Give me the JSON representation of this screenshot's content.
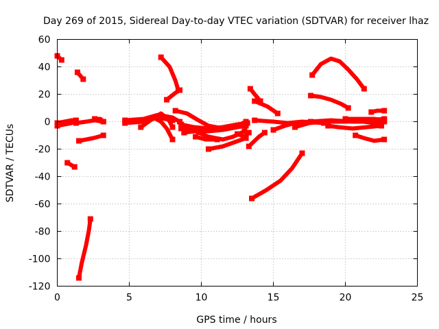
{
  "chart_data": {
    "type": "line",
    "title": "Day 269 of 2015, Sidereal Day-to-day VTEC variation (SDTVAR) for receiver lhaz",
    "xlabel": "GPS time / hours",
    "ylabel": "SDTVAR / TECUs",
    "xlim": [
      0,
      25
    ],
    "ylim": [
      -120,
      60
    ],
    "x_ticks": [
      "0",
      "5",
      "10",
      "15",
      "20",
      "25"
    ],
    "y_ticks": [
      "60",
      "40",
      "20",
      "0",
      "-20",
      "-40",
      "-60",
      "-80",
      "-100",
      "-120"
    ],
    "x_tick_values": [
      0,
      5,
      10,
      15,
      20,
      25
    ],
    "y_tick_values": [
      60,
      40,
      20,
      0,
      -20,
      -40,
      -60,
      -80,
      -100,
      -120
    ],
    "grid": true,
    "color": "#ff0000",
    "series": [
      {
        "name": "s1",
        "points": [
          [
            0.0,
            48
          ],
          [
            0.3,
            45
          ]
        ]
      },
      {
        "name": "s2",
        "points": [
          [
            0.0,
            -1
          ],
          [
            0.5,
            0
          ],
          [
            1.0,
            1
          ],
          [
            1.3,
            1
          ]
        ]
      },
      {
        "name": "s3",
        "points": [
          [
            0.0,
            -3
          ],
          [
            0.5,
            -2
          ],
          [
            1.0,
            -1
          ],
          [
            1.3,
            1
          ]
        ]
      },
      {
        "name": "s4",
        "points": [
          [
            1.3,
            -1
          ],
          [
            2.0,
            0
          ],
          [
            2.6,
            1
          ],
          [
            3.2,
            0
          ]
        ]
      },
      {
        "name": "s5",
        "points": [
          [
            2.6,
            2
          ],
          [
            3.0,
            2
          ],
          [
            3.2,
            0
          ]
        ]
      },
      {
        "name": "s6",
        "points": [
          [
            1.4,
            36
          ],
          [
            1.8,
            31
          ]
        ]
      },
      {
        "name": "s7",
        "points": [
          [
            0.7,
            -30
          ],
          [
            1.2,
            -33
          ]
        ]
      },
      {
        "name": "s8",
        "points": [
          [
            1.5,
            -114
          ],
          [
            1.7,
            -103
          ],
          [
            2.0,
            -90
          ],
          [
            2.2,
            -79
          ],
          [
            2.3,
            -71
          ]
        ]
      },
      {
        "name": "s9",
        "points": [
          [
            1.5,
            -14
          ],
          [
            2.5,
            -12
          ],
          [
            3.2,
            -10
          ]
        ]
      },
      {
        "name": "s10",
        "points": [
          [
            4.7,
            1
          ],
          [
            6.0,
            2
          ],
          [
            7.0,
            5
          ],
          [
            8.0,
            3
          ],
          [
            8.5,
            0
          ]
        ]
      },
      {
        "name": "s11",
        "points": [
          [
            4.7,
            -1
          ],
          [
            6.0,
            0
          ],
          [
            7.0,
            3
          ],
          [
            8.0,
            1
          ]
        ]
      },
      {
        "name": "s12",
        "points": [
          [
            5.8,
            -4
          ],
          [
            6.6,
            2
          ],
          [
            7.2,
            6
          ],
          [
            7.7,
            2
          ],
          [
            8.0,
            -4
          ]
        ]
      },
      {
        "name": "s13",
        "points": [
          [
            6.7,
            3
          ],
          [
            7.2,
            0
          ],
          [
            7.6,
            -5
          ],
          [
            8.0,
            -13
          ]
        ]
      },
      {
        "name": "s14",
        "points": [
          [
            7.2,
            47
          ],
          [
            7.8,
            40
          ],
          [
            8.2,
            30
          ],
          [
            8.4,
            23
          ]
        ]
      },
      {
        "name": "s15",
        "points": [
          [
            7.6,
            16
          ],
          [
            8.2,
            21
          ],
          [
            8.5,
            23
          ]
        ]
      },
      {
        "name": "s16",
        "points": [
          [
            8.2,
            8
          ],
          [
            9.0,
            6
          ],
          [
            9.8,
            1
          ],
          [
            10.5,
            -3
          ],
          [
            11.5,
            -5
          ],
          [
            12.5,
            -3
          ],
          [
            13.1,
            0
          ]
        ]
      },
      {
        "name": "s17",
        "points": [
          [
            8.6,
            -2
          ],
          [
            9.5,
            -4
          ],
          [
            10.5,
            -5
          ],
          [
            11.5,
            -4
          ],
          [
            12.5,
            -2
          ],
          [
            13.2,
            -1
          ]
        ]
      },
      {
        "name": "s18",
        "points": [
          [
            8.8,
            -8
          ],
          [
            9.5,
            -7
          ],
          [
            10.5,
            -7
          ],
          [
            11.5,
            -6
          ],
          [
            12.5,
            -4
          ],
          [
            13.1,
            -3
          ]
        ]
      },
      {
        "name": "s19",
        "points": [
          [
            8.6,
            -5
          ],
          [
            9.3,
            -5
          ],
          [
            9.8,
            -8
          ],
          [
            10.5,
            -11
          ],
          [
            11.5,
            -13
          ],
          [
            12.2,
            -11
          ],
          [
            13.0,
            -7
          ]
        ]
      },
      {
        "name": "s20",
        "points": [
          [
            9.6,
            -11
          ],
          [
            10.3,
            -13
          ],
          [
            11.1,
            -13
          ]
        ]
      },
      {
        "name": "s21",
        "points": [
          [
            10.5,
            -20
          ],
          [
            11.5,
            -18
          ],
          [
            12.3,
            -15
          ],
          [
            13.1,
            -12
          ]
        ]
      },
      {
        "name": "s22",
        "points": [
          [
            12.5,
            -9
          ],
          [
            13.0,
            -11
          ],
          [
            13.3,
            -8
          ]
        ]
      },
      {
        "name": "s23",
        "points": [
          [
            13.4,
            24
          ],
          [
            13.7,
            20
          ],
          [
            14.1,
            15
          ]
        ]
      },
      {
        "name": "s24",
        "points": [
          [
            13.7,
            15
          ],
          [
            14.6,
            11
          ],
          [
            15.3,
            6
          ]
        ]
      },
      {
        "name": "s25",
        "points": [
          [
            13.3,
            -18
          ],
          [
            14.0,
            -11
          ],
          [
            14.4,
            -8
          ]
        ]
      },
      {
        "name": "s26",
        "points": [
          [
            13.5,
            -56
          ],
          [
            14.5,
            -50
          ],
          [
            15.5,
            -43
          ],
          [
            16.3,
            -34
          ],
          [
            17.0,
            -23
          ]
        ]
      },
      {
        "name": "s27",
        "points": [
          [
            13.7,
            1
          ],
          [
            15.0,
            0
          ],
          [
            16.0,
            -1
          ],
          [
            17.0,
            0
          ],
          [
            18.5,
            -1
          ]
        ]
      },
      {
        "name": "s28",
        "points": [
          [
            15.0,
            -6
          ],
          [
            15.8,
            -3
          ],
          [
            16.5,
            -1
          ],
          [
            17.5,
            0
          ],
          [
            19.0,
            1
          ],
          [
            20.5,
            0
          ],
          [
            22.0,
            0
          ],
          [
            22.7,
            1
          ]
        ]
      },
      {
        "name": "s29",
        "points": [
          [
            16.5,
            -4
          ],
          [
            17.5,
            -1
          ],
          [
            18.5,
            0
          ],
          [
            20.0,
            0
          ],
          [
            21.5,
            1
          ],
          [
            22.7,
            2
          ]
        ]
      },
      {
        "name": "s30",
        "points": [
          [
            17.6,
            0
          ],
          [
            19.0,
            0
          ],
          [
            20.5,
            1
          ],
          [
            22.0,
            -1
          ],
          [
            22.7,
            0
          ]
        ]
      },
      {
        "name": "s31",
        "points": [
          [
            17.7,
            34
          ],
          [
            18.3,
            42
          ],
          [
            19.0,
            46
          ],
          [
            19.6,
            44
          ],
          [
            20.2,
            38
          ],
          [
            20.8,
            31
          ],
          [
            21.3,
            24
          ]
        ]
      },
      {
        "name": "s32",
        "points": [
          [
            17.6,
            19
          ],
          [
            18.3,
            18
          ],
          [
            19.0,
            16
          ],
          [
            19.7,
            13
          ],
          [
            20.2,
            10
          ]
        ]
      },
      {
        "name": "s33",
        "points": [
          [
            18.8,
            -3
          ],
          [
            19.5,
            -4
          ],
          [
            20.5,
            -5
          ],
          [
            21.5,
            -4
          ],
          [
            22.5,
            -3
          ]
        ]
      },
      {
        "name": "s34",
        "points": [
          [
            20.7,
            -10
          ],
          [
            21.3,
            -12
          ],
          [
            22.0,
            -14
          ],
          [
            22.7,
            -13
          ]
        ]
      },
      {
        "name": "s35",
        "points": [
          [
            21.8,
            7
          ],
          [
            22.2,
            8
          ],
          [
            22.7,
            8
          ]
        ]
      },
      {
        "name": "s36",
        "points": [
          [
            20.0,
            2
          ],
          [
            21.0,
            2
          ],
          [
            22.0,
            2
          ],
          [
            22.7,
            1
          ]
        ]
      }
    ]
  }
}
